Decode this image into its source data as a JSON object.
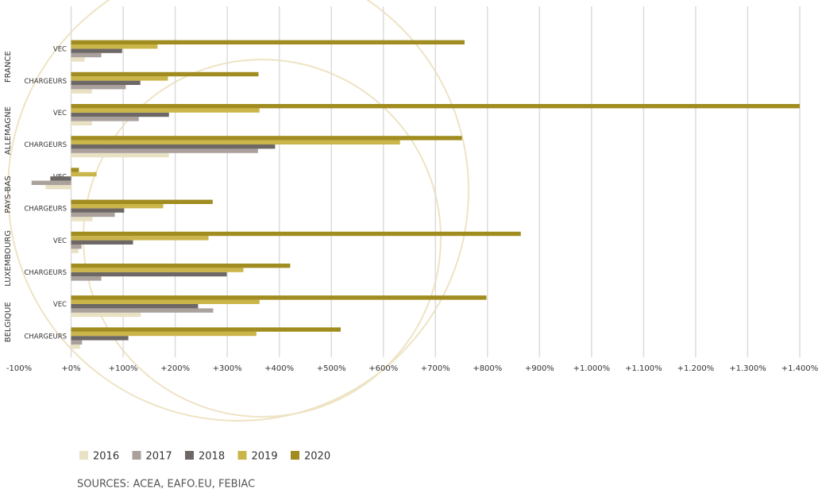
{
  "chart_data": {
    "type": "bar",
    "orientation": "horizontal",
    "groups": [
      {
        "name": "FRANCE",
        "categories": [
          "VEC",
          "CHARGEURS"
        ]
      },
      {
        "name": "ALLEMAGNE",
        "categories": [
          "VEC",
          "CHARGEURS"
        ]
      },
      {
        "name": "PAYS-BAS",
        "categories": [
          "VEC",
          "CHARGEURS"
        ]
      },
      {
        "name": "LUXEMBOURG",
        "categories": [
          "VEC",
          "CHARGEURS"
        ]
      },
      {
        "name": "BELGIQUE",
        "categories": [
          "VEC",
          "CHARGEURS"
        ]
      }
    ],
    "series": [
      {
        "name": "2016",
        "color": "#e9e1c3",
        "values": [
          26,
          40,
          40,
          188,
          -49,
          41,
          14,
          0,
          134,
          17
        ]
      },
      {
        "name": "2017",
        "color": "#aaa19d",
        "values": [
          58,
          105,
          130,
          359,
          -76,
          84,
          20,
          58,
          273,
          21
        ]
      },
      {
        "name": "2018",
        "color": "#6d6866",
        "values": [
          98,
          133,
          188,
          392,
          -40,
          102,
          119,
          299,
          244,
          110
        ]
      },
      {
        "name": "2019",
        "color": "#cab54a",
        "values": [
          166,
          186,
          362,
          632,
          49,
          177,
          264,
          331,
          362,
          356
        ]
      },
      {
        "name": "2020",
        "color": "#a18c1f",
        "values": [
          756,
          360,
          1400,
          751,
          15,
          272,
          864,
          421,
          798,
          518
        ]
      }
    ],
    "xlim": [
      -100,
      1400
    ],
    "xticks": [
      {
        "value": -100,
        "label": "-100%"
      },
      {
        "value": 0,
        "label": "+0%"
      },
      {
        "value": 100,
        "label": "+100%"
      },
      {
        "value": 200,
        "label": "+200%"
      },
      {
        "value": 300,
        "label": "+300%"
      },
      {
        "value": 400,
        "label": "+400%"
      },
      {
        "value": 500,
        "label": "+500%"
      },
      {
        "value": 600,
        "label": "+600%"
      },
      {
        "value": 700,
        "label": "+700%"
      },
      {
        "value": 800,
        "label": "+800%"
      },
      {
        "value": 900,
        "label": "+900%"
      },
      {
        "value": 1000,
        "label": "+1.000%"
      },
      {
        "value": 1100,
        "label": "+1.100%"
      },
      {
        "value": 1200,
        "label": "+1.200%"
      },
      {
        "value": 1300,
        "label": "+1.300%"
      },
      {
        "value": 1400,
        "label": "+1.400%"
      }
    ],
    "grid": true,
    "legend": "bottom",
    "source": "SOURCES: ACEA, EAFO.EU, FEBIAC"
  }
}
